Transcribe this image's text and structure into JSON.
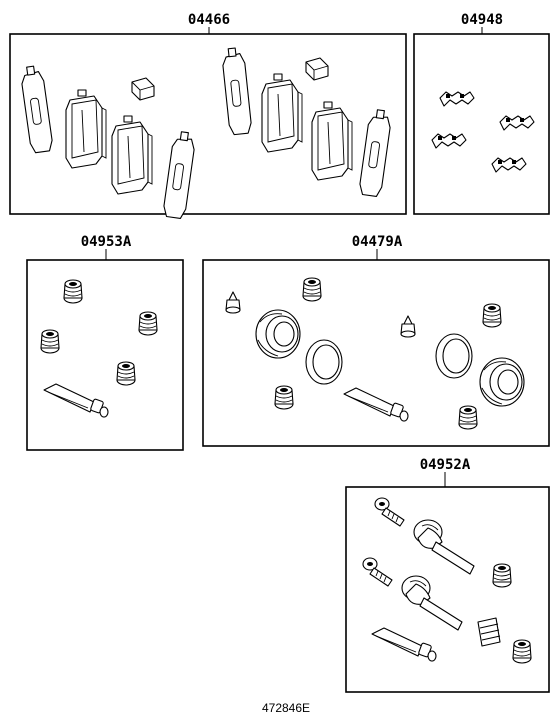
{
  "diagram": {
    "groups": [
      {
        "id": "pad-kit",
        "label": "04466",
        "parts": [
          "shim",
          "pad",
          "pad-clip",
          "pad",
          "shim",
          "shim",
          "pad-clip",
          "pad",
          "pad",
          "shim"
        ]
      },
      {
        "id": "fitting-kit",
        "label": "04948",
        "parts": [
          "anti-squeal-clip",
          "anti-squeal-clip",
          "anti-squeal-clip",
          "anti-squeal-clip"
        ]
      },
      {
        "id": "boot-kit",
        "label": "04953A",
        "parts": [
          "boot",
          "boot",
          "boot",
          "boot",
          "grease-tube"
        ]
      },
      {
        "id": "cylinder-kit",
        "label": "04479A",
        "parts": [
          "bleeder-cap",
          "boot",
          "piston-seal",
          "piston-ring",
          "boot",
          "grease-tube",
          "bleeder-cap",
          "piston-ring",
          "piston-seal",
          "boot",
          "boot"
        ]
      },
      {
        "id": "slide-pin-kit",
        "label": "04952A",
        "parts": [
          "bolt",
          "slide-pin",
          "bolt",
          "boot",
          "slide-pin",
          "bushing",
          "grease-tube",
          "boot"
        ]
      }
    ],
    "reference_code": "472846E",
    "line_color": "#000000",
    "background": "#ffffff"
  }
}
